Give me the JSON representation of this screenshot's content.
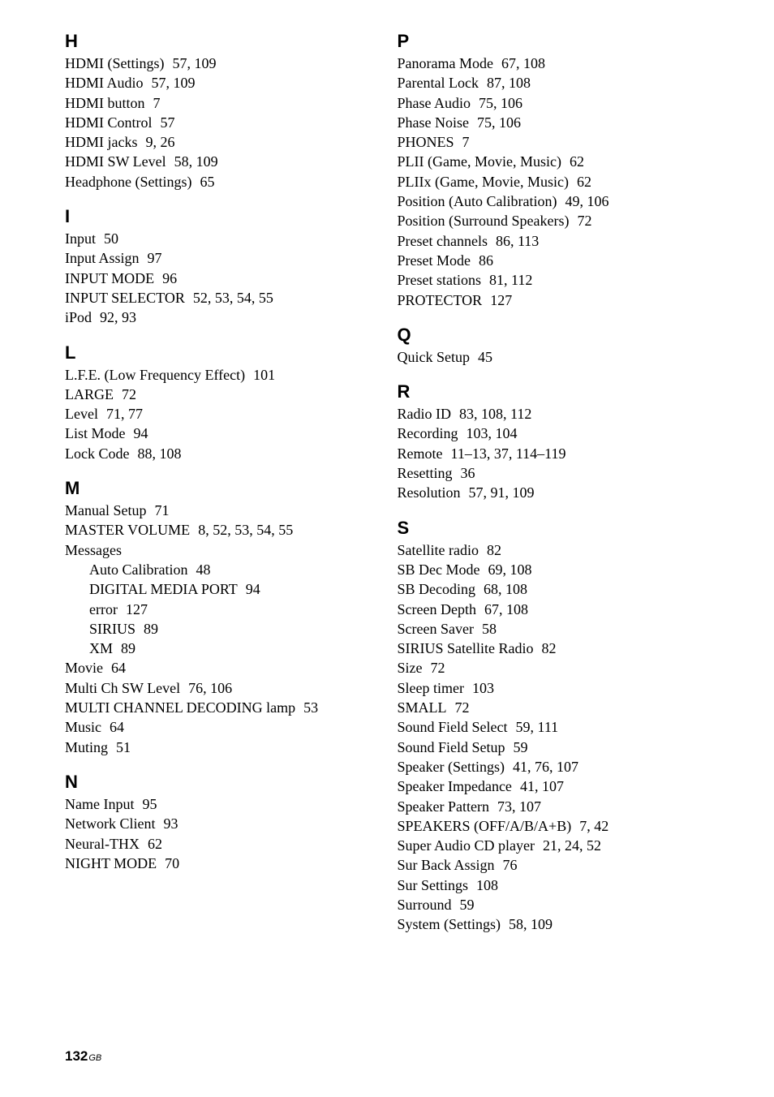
{
  "page_number": "132",
  "page_region": "GB",
  "columns": [
    [
      {
        "letter": "H",
        "entries": [
          {
            "term": "HDMI (Settings)",
            "pages": "57, 109"
          },
          {
            "term": "HDMI Audio",
            "pages": "57, 109"
          },
          {
            "term": "HDMI button",
            "pages": "7"
          },
          {
            "term": "HDMI Control",
            "pages": "57"
          },
          {
            "term": "HDMI jacks",
            "pages": "9, 26"
          },
          {
            "term": "HDMI SW Level",
            "pages": "58, 109"
          },
          {
            "term": "Headphone (Settings)",
            "pages": "65"
          }
        ]
      },
      {
        "letter": "I",
        "entries": [
          {
            "term": "Input",
            "pages": "50"
          },
          {
            "term": "Input Assign",
            "pages": "97"
          },
          {
            "term": "INPUT MODE",
            "pages": "96"
          },
          {
            "term": "INPUT SELECTOR",
            "pages": "52, 53, 54, 55"
          },
          {
            "term": "iPod",
            "pages": "92, 93"
          }
        ]
      },
      {
        "letter": "L",
        "entries": [
          {
            "term": "L.F.E. (Low Frequency Effect)",
            "pages": "101"
          },
          {
            "term": "LARGE",
            "pages": "72"
          },
          {
            "term": "Level",
            "pages": "71, 77"
          },
          {
            "term": "List Mode",
            "pages": "94"
          },
          {
            "term": "Lock Code",
            "pages": "88, 108"
          }
        ]
      },
      {
        "letter": "M",
        "entries": [
          {
            "term": "Manual Setup",
            "pages": "71"
          },
          {
            "term": "MASTER VOLUME",
            "pages": "8, 52, 53, 54, 55"
          },
          {
            "term": "Messages",
            "pages": ""
          },
          {
            "term": "Auto Calibration",
            "pages": "48",
            "sub": true
          },
          {
            "term": "DIGITAL MEDIA PORT",
            "pages": "94",
            "sub": true
          },
          {
            "term": "error",
            "pages": "127",
            "sub": true
          },
          {
            "term": "SIRIUS",
            "pages": "89",
            "sub": true
          },
          {
            "term": "XM",
            "pages": "89",
            "sub": true
          },
          {
            "term": "Movie",
            "pages": "64"
          },
          {
            "term": "Multi Ch SW Level",
            "pages": "76, 106"
          },
          {
            "term": "MULTI CHANNEL DECODING lamp",
            "pages": "53"
          },
          {
            "term": "Music",
            "pages": "64"
          },
          {
            "term": "Muting",
            "pages": "51"
          }
        ]
      },
      {
        "letter": "N",
        "entries": [
          {
            "term": "Name Input",
            "pages": "95"
          },
          {
            "term": "Network Client",
            "pages": "93"
          },
          {
            "term": "Neural-THX",
            "pages": "62"
          },
          {
            "term": "NIGHT MODE",
            "pages": "70"
          }
        ]
      }
    ],
    [
      {
        "letter": "P",
        "entries": [
          {
            "term": "Panorama Mode",
            "pages": "67, 108"
          },
          {
            "term": "Parental Lock",
            "pages": "87, 108"
          },
          {
            "term": "Phase Audio",
            "pages": "75, 106"
          },
          {
            "term": "Phase Noise",
            "pages": "75, 106"
          },
          {
            "term": "PHONES",
            "pages": "7"
          },
          {
            "term": "PLII (Game, Movie, Music)",
            "pages": "62"
          },
          {
            "term": "PLIIx (Game, Movie, Music)",
            "pages": "62"
          },
          {
            "term": "Position (Auto Calibration)",
            "pages": "49, 106"
          },
          {
            "term": "Position (Surround Speakers)",
            "pages": "72"
          },
          {
            "term": "Preset channels",
            "pages": "86, 113"
          },
          {
            "term": "Preset Mode",
            "pages": "86"
          },
          {
            "term": "Preset stations",
            "pages": "81, 112"
          },
          {
            "term": "PROTECTOR",
            "pages": "127"
          }
        ]
      },
      {
        "letter": "Q",
        "entries": [
          {
            "term": "Quick Setup",
            "pages": "45"
          }
        ]
      },
      {
        "letter": "R",
        "entries": [
          {
            "term": "Radio ID",
            "pages": "83, 108, 112"
          },
          {
            "term": "Recording",
            "pages": "103, 104"
          },
          {
            "term": "Remote",
            "pages": "11–13, 37, 114–119"
          },
          {
            "term": "Resetting",
            "pages": "36"
          },
          {
            "term": "Resolution",
            "pages": "57, 91, 109"
          }
        ]
      },
      {
        "letter": "S",
        "entries": [
          {
            "term": "Satellite radio",
            "pages": "82"
          },
          {
            "term": "SB Dec Mode",
            "pages": "69, 108"
          },
          {
            "term": "SB Decoding",
            "pages": "68, 108"
          },
          {
            "term": "Screen Depth",
            "pages": "67, 108"
          },
          {
            "term": "Screen Saver",
            "pages": "58"
          },
          {
            "term": "SIRIUS Satellite Radio",
            "pages": "82"
          },
          {
            "term": "Size",
            "pages": "72"
          },
          {
            "term": "Sleep timer",
            "pages": "103"
          },
          {
            "term": "SMALL",
            "pages": "72"
          },
          {
            "term": "Sound Field Select",
            "pages": "59, 111"
          },
          {
            "term": "Sound Field Setup",
            "pages": "59"
          },
          {
            "term": "Speaker (Settings)",
            "pages": "41, 76, 107"
          },
          {
            "term": "Speaker Impedance",
            "pages": "41, 107"
          },
          {
            "term": "Speaker Pattern",
            "pages": "73, 107"
          },
          {
            "term": "SPEAKERS (OFF/A/B/A+B)",
            "pages": "7, 42"
          },
          {
            "term": "Super Audio CD player",
            "pages": "21, 24, 52"
          },
          {
            "term": "Sur Back Assign",
            "pages": "76"
          },
          {
            "term": "Sur Settings",
            "pages": "108"
          },
          {
            "term": "Surround",
            "pages": "59"
          },
          {
            "term": "System (Settings)",
            "pages": "58, 109"
          }
        ]
      }
    ]
  ]
}
